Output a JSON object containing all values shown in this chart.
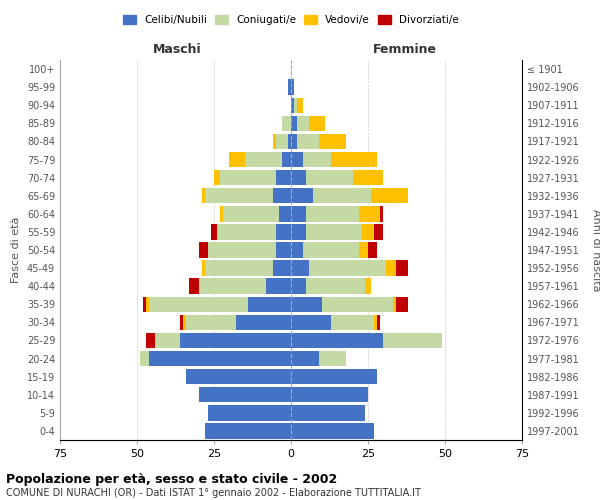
{
  "age_groups": [
    "0-4",
    "5-9",
    "10-14",
    "15-19",
    "20-24",
    "25-29",
    "30-34",
    "35-39",
    "40-44",
    "45-49",
    "50-54",
    "55-59",
    "60-64",
    "65-69",
    "70-74",
    "75-79",
    "80-84",
    "85-89",
    "90-94",
    "95-99",
    "100+"
  ],
  "birth_years": [
    "1997-2001",
    "1992-1996",
    "1987-1991",
    "1982-1986",
    "1977-1981",
    "1972-1976",
    "1967-1971",
    "1962-1966",
    "1957-1961",
    "1952-1956",
    "1947-1951",
    "1942-1946",
    "1937-1941",
    "1932-1936",
    "1927-1931",
    "1922-1926",
    "1917-1921",
    "1912-1916",
    "1907-1911",
    "1902-1906",
    "≤ 1901"
  ],
  "maschi": {
    "celibi": [
      28,
      27,
      30,
      34,
      46,
      36,
      18,
      14,
      8,
      6,
      5,
      5,
      4,
      6,
      5,
      3,
      1,
      0,
      0,
      1,
      0
    ],
    "coniugati": [
      0,
      0,
      0,
      0,
      3,
      8,
      16,
      32,
      22,
      22,
      22,
      19,
      18,
      22,
      18,
      12,
      4,
      3,
      0,
      0,
      0
    ],
    "vedovi": [
      0,
      0,
      0,
      0,
      0,
      0,
      1,
      1,
      0,
      1,
      0,
      0,
      1,
      1,
      2,
      5,
      1,
      0,
      0,
      0,
      0
    ],
    "divorziati": [
      0,
      0,
      0,
      0,
      0,
      3,
      1,
      1,
      3,
      0,
      3,
      2,
      0,
      0,
      0,
      0,
      0,
      0,
      0,
      0,
      0
    ]
  },
  "femmine": {
    "nubili": [
      27,
      24,
      25,
      28,
      9,
      30,
      13,
      10,
      5,
      6,
      4,
      5,
      5,
      7,
      5,
      4,
      2,
      2,
      1,
      1,
      0
    ],
    "coniugate": [
      0,
      0,
      0,
      0,
      9,
      19,
      14,
      23,
      19,
      25,
      18,
      18,
      17,
      19,
      15,
      9,
      7,
      4,
      1,
      0,
      0
    ],
    "vedove": [
      0,
      0,
      0,
      0,
      0,
      0,
      1,
      1,
      2,
      3,
      3,
      4,
      7,
      12,
      10,
      15,
      9,
      5,
      2,
      0,
      0
    ],
    "divorziate": [
      0,
      0,
      0,
      0,
      0,
      0,
      1,
      4,
      0,
      4,
      3,
      3,
      1,
      0,
      0,
      0,
      0,
      0,
      0,
      0,
      0
    ]
  },
  "colors": {
    "celibi": "#4472c4",
    "coniugati": "#c5d9a4",
    "vedovi": "#ffc000",
    "divorziati": "#c00000"
  },
  "xlim": 75,
  "title": "Popolazione per età, sesso e stato civile - 2002",
  "subtitle": "COMUNE DI NURACHI (OR) - Dati ISTAT 1° gennaio 2002 - Elaborazione TUTTITALIA.IT",
  "ylabel_left": "Fasce di età",
  "ylabel_right": "Anni di nascita",
  "xlabel_left": "Maschi",
  "xlabel_right": "Femmine"
}
